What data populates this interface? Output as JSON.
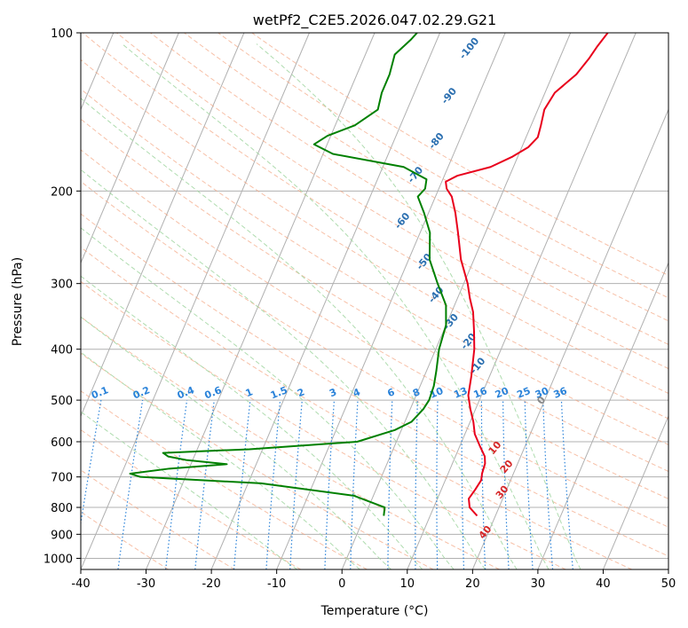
{
  "chart_data": {
    "type": "line",
    "title": "wetPf2_C2E5.2026.047.02.29.G21",
    "xlabel": "Temperature (°C)",
    "ylabel": "Pressure (hPa)",
    "xlim": [
      -40,
      50
    ],
    "ylim": [
      1050,
      100
    ],
    "y_scale": "log",
    "x_ticks": [
      "-40",
      "-30",
      "-20",
      "-10",
      "0",
      "10",
      "20",
      "30",
      "40",
      "50"
    ],
    "y_ticks": [
      "100",
      "200",
      "300",
      "400",
      "500",
      "600",
      "700",
      "800",
      "900",
      "1000"
    ],
    "grid": true,
    "skew": 35,
    "series": [
      {
        "color": "#e8001c",
        "points": [
          [
            830,
            17.2
          ],
          [
            800,
            15.5
          ],
          [
            770,
            14.8
          ],
          [
            740,
            15.2
          ],
          [
            710,
            15.5
          ],
          [
            690,
            15.2
          ],
          [
            660,
            15.0
          ],
          [
            640,
            14.5
          ],
          [
            610,
            13.0
          ],
          [
            580,
            11.5
          ],
          [
            550,
            10.5
          ],
          [
            520,
            9.2
          ],
          [
            490,
            8.0
          ],
          [
            450,
            7.2
          ],
          [
            400,
            5.9
          ],
          [
            370,
            4.7
          ],
          [
            340,
            3.3
          ],
          [
            320,
            1.9
          ],
          [
            300,
            0.6
          ],
          [
            270,
            -2.0
          ],
          [
            240,
            -4.2
          ],
          [
            220,
            -5.9
          ],
          [
            205,
            -7.5
          ],
          [
            198,
            -8.8
          ],
          [
            192,
            -9.4
          ],
          [
            187,
            -8.0
          ],
          [
            180,
            -3.5
          ],
          [
            172,
            -0.8
          ],
          [
            165,
            1.0
          ],
          [
            158,
            1.8
          ],
          [
            150,
            1.5
          ],
          [
            140,
            1.0
          ],
          [
            130,
            1.5
          ],
          [
            120,
            3.6
          ],
          [
            112,
            4.5
          ],
          [
            106,
            5.0
          ],
          [
            100,
            5.7
          ]
        ]
      },
      {
        "color": "#008000",
        "points": [
          [
            830,
            2.9
          ],
          [
            800,
            2.5
          ],
          [
            760,
            -3.0
          ],
          [
            720,
            -18.0
          ],
          [
            700,
            -36.9
          ],
          [
            690,
            -38.7
          ],
          [
            675,
            -33.0
          ],
          [
            662,
            -24.5
          ],
          [
            650,
            -31.0
          ],
          [
            640,
            -34.0
          ],
          [
            630,
            -35.0
          ],
          [
            620,
            -22.0
          ],
          [
            600,
            -6.0
          ],
          [
            570,
            -1.0
          ],
          [
            550,
            1.0
          ],
          [
            520,
            2.0
          ],
          [
            500,
            2.3
          ],
          [
            470,
            2.1
          ],
          [
            440,
            1.5
          ],
          [
            400,
            0.5
          ],
          [
            360,
            0.0
          ],
          [
            330,
            -1.3
          ],
          [
            300,
            -4.0
          ],
          [
            270,
            -6.8
          ],
          [
            240,
            -8.5
          ],
          [
            220,
            -10.7
          ],
          [
            205,
            -12.7
          ],
          [
            198,
            -12.1
          ],
          [
            190,
            -12.5
          ],
          [
            180,
            -16.8
          ],
          [
            170,
            -28.5
          ],
          [
            163,
            -32.0
          ],
          [
            157,
            -30.5
          ],
          [
            150,
            -27.0
          ],
          [
            140,
            -24.5
          ],
          [
            130,
            -25.0
          ],
          [
            120,
            -25.0
          ],
          [
            110,
            -25.5
          ],
          [
            103,
            -24.0
          ],
          [
            100,
            -23.5
          ]
        ]
      }
    ],
    "dry_adiabats": [
      -30,
      -20,
      -10,
      0,
      10,
      20,
      30,
      40,
      50,
      60,
      70,
      80,
      90,
      100,
      110,
      120,
      130,
      140,
      150,
      160
    ],
    "moist_adiabats": [
      -10,
      0,
      5,
      10,
      15,
      20,
      25,
      30,
      35
    ],
    "mixing_ratios": [
      "0.1",
      "0.2",
      "0.4",
      "0.6",
      "1",
      "1.5",
      "2",
      "3",
      "4",
      "6",
      "8",
      "10",
      "13",
      "16",
      "20",
      "25",
      "30",
      "36"
    ],
    "annotations": {
      "blue": [
        "-100",
        "-90",
        "-80",
        "-70",
        "-60",
        "-50",
        "-40",
        "-30",
        "-20",
        "-10"
      ],
      "gray": [
        "0"
      ],
      "red": [
        "10",
        "20",
        "30",
        "40"
      ]
    },
    "colors": {
      "temperature": "#e8001c",
      "dewpoint": "#008000",
      "dry_adiabat": "#f4a582",
      "moist_adiabat": "#a6d8a6",
      "mixing_ratio": "#2b83d9",
      "isotherm_labels": "#2b6fb0",
      "warm_labels": "#d62728"
    }
  }
}
